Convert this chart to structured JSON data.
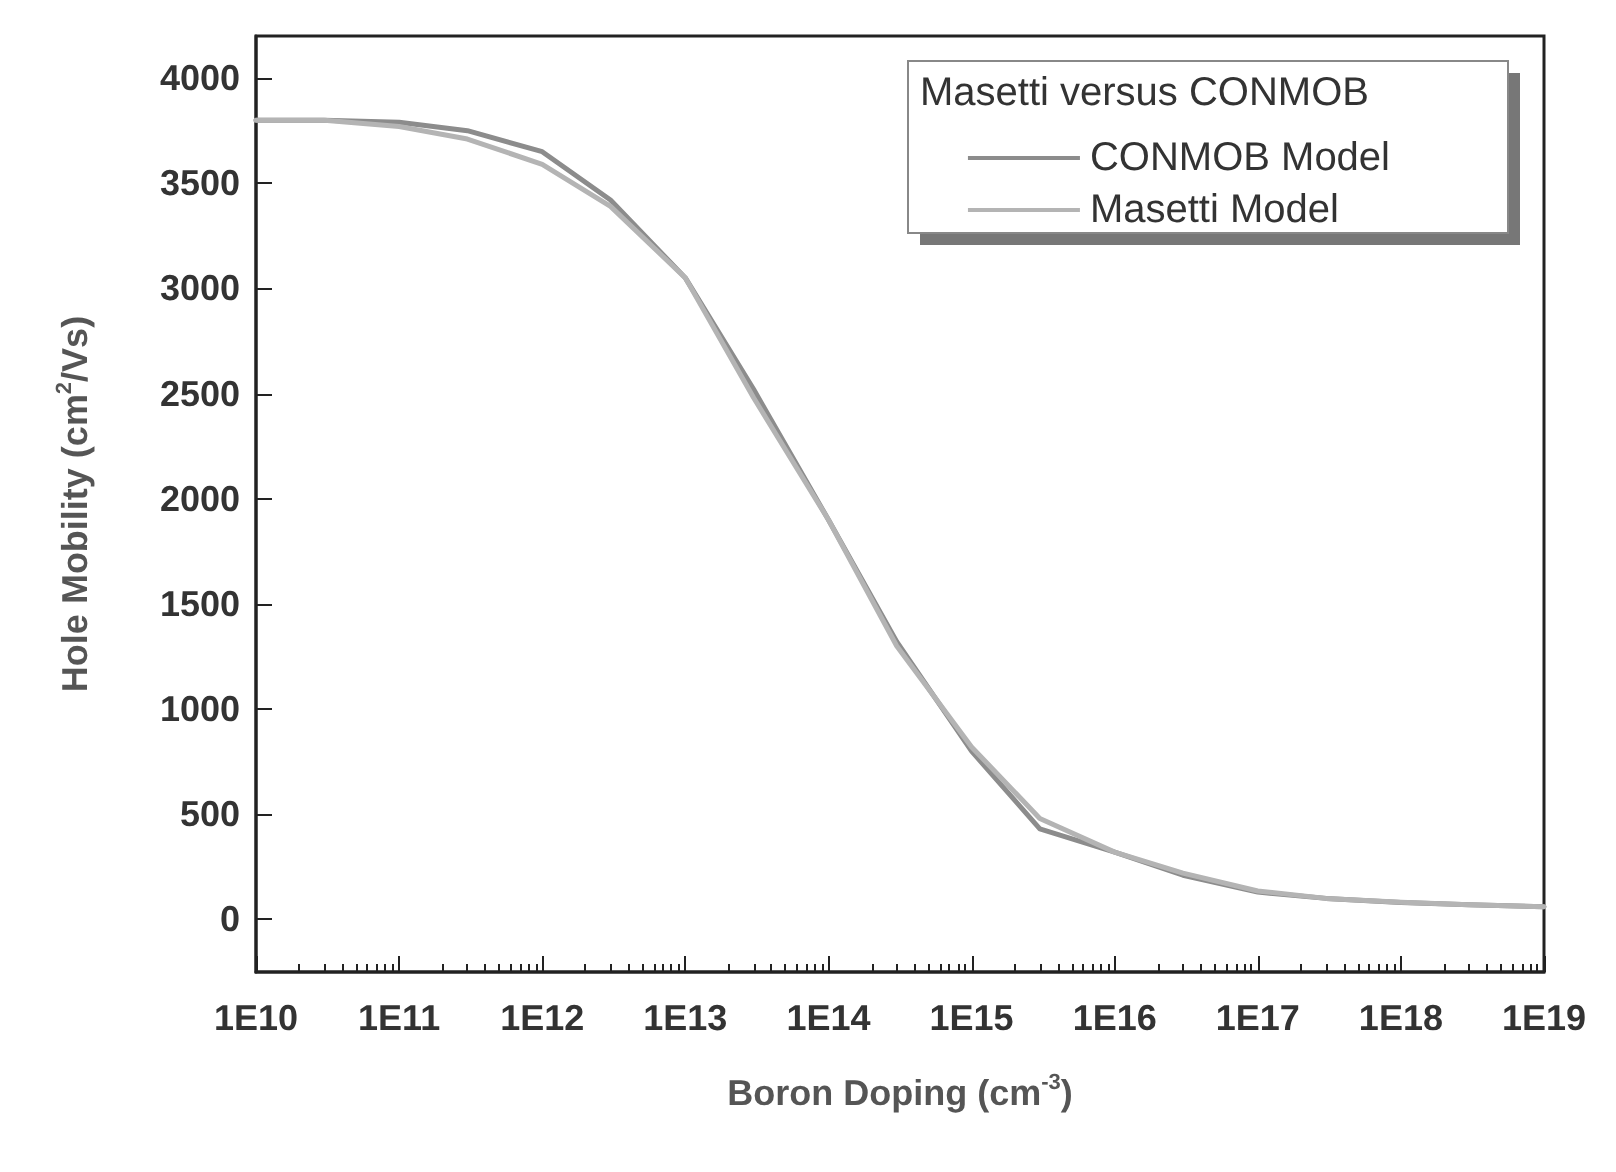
{
  "chart_data": {
    "type": "line",
    "xlabel": "Boron Doping (cm$^{-3}$)",
    "ylabel": "Hole Mobility (cm$^{2}$/Vs)",
    "legend_title": "Masetti versus CONMOB",
    "legend": "top right",
    "log": "x",
    "grid": false,
    "marker": "none",
    "line_style": "solid",
    "x": [
      10000000000.0,
      30000000000.0,
      100000000000.0,
      300000000000.0,
      1000000000000.0,
      3000000000000.0,
      10000000000000.0,
      30000000000000.0,
      100000000000000.0,
      300000000000000.0,
      1000000000000000.0,
      3000000000000000.0,
      1e+16,
      3e+16,
      1e+17,
      3e+17,
      1e+18,
      3e+18,
      1e+19
    ],
    "xlim": [
      10000000000.0,
      1e+19
    ],
    "xticks": [
      {
        "value": 10000000000.0,
        "label": "1E10"
      },
      {
        "value": 100000000000.0,
        "label": "1E11"
      },
      {
        "value": 1000000000000.0,
        "label": "1E12"
      },
      {
        "value": 10000000000000.0,
        "label": "1E13"
      },
      {
        "value": 100000000000000.0,
        "label": "1E14"
      },
      {
        "value": 1000000000000000.0,
        "label": "1E15"
      },
      {
        "value": 1e+16,
        "label": "1E16"
      },
      {
        "value": 1e+17,
        "label": "1E17"
      },
      {
        "value": 1e+18,
        "label": "1E18"
      },
      {
        "value": 1e+19,
        "label": "1E19"
      }
    ],
    "ylim": [
      -250,
      4200
    ],
    "yticks": [
      0,
      500,
      1000,
      1500,
      2000,
      2500,
      3000,
      3500,
      4000
    ],
    "series": [
      {
        "name": "CONMOB Model",
        "color": "#8c8c8c",
        "values": [
          3800,
          3800,
          3790,
          3750,
          3650,
          3420,
          3050,
          2520,
          1900,
          1320,
          800,
          430,
          320,
          210,
          130,
          100,
          80,
          70,
          60
        ]
      },
      {
        "name": "Masetti Model",
        "color": "#b4b4b4",
        "values": [
          3800,
          3800,
          3770,
          3710,
          3590,
          3390,
          3050,
          2480,
          1900,
          1300,
          820,
          480,
          320,
          220,
          135,
          100,
          82,
          70,
          60
        ]
      }
    ]
  }
}
